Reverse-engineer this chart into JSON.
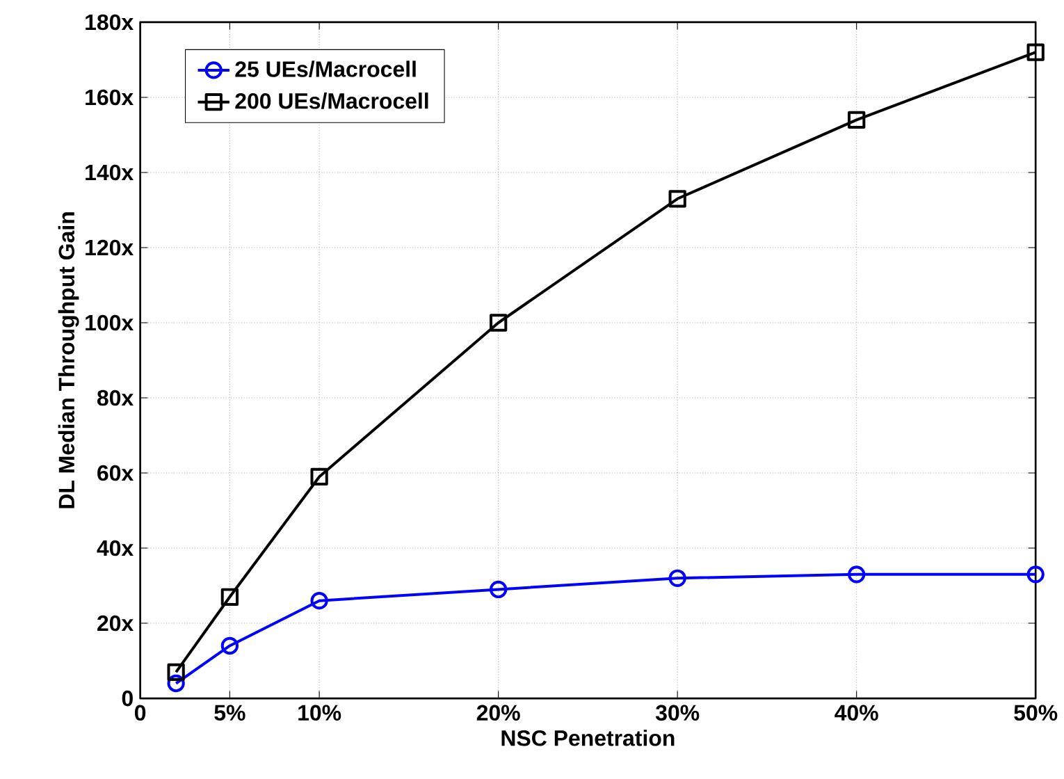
{
  "chart_data": {
    "type": "line",
    "xlabel": "NSC Penetration",
    "ylabel": "DL Median Throughput Gain",
    "x": [
      2,
      5,
      10,
      20,
      30,
      40,
      50
    ],
    "series": [
      {
        "name": "25 UEs/Macrocell",
        "color": "#0000ff",
        "marker": "circle",
        "values": [
          4,
          14,
          26,
          29,
          32,
          33,
          33
        ]
      },
      {
        "name": "200 UEs/Macrocell",
        "color": "#000000",
        "marker": "square",
        "values": [
          7,
          27,
          59,
          100,
          133,
          154,
          172
        ]
      }
    ],
    "xlim": [
      0,
      50
    ],
    "ylim": [
      0,
      180
    ],
    "xticks": [
      0,
      {
        "value": 5,
        "label": "5%"
      },
      {
        "value": 10,
        "label": "10%"
      },
      {
        "value": 20,
        "label": "20%"
      },
      {
        "value": 30,
        "label": "30%"
      },
      {
        "value": 40,
        "label": "40%"
      },
      {
        "value": 50,
        "label": "50%"
      }
    ],
    "yticks": [
      0,
      {
        "value": 20,
        "label": "20x"
      },
      {
        "value": 40,
        "label": "40x"
      },
      {
        "value": 60,
        "label": "60x"
      },
      {
        "value": 80,
        "label": "80x"
      },
      {
        "value": 100,
        "label": "100x"
      },
      {
        "value": 120,
        "label": "120x"
      },
      {
        "value": 140,
        "label": "140x"
      },
      {
        "value": 160,
        "label": "160x"
      },
      {
        "value": 180,
        "label": "180x"
      }
    ],
    "grid": true,
    "legend": "top left",
    "line_style": "solid"
  }
}
